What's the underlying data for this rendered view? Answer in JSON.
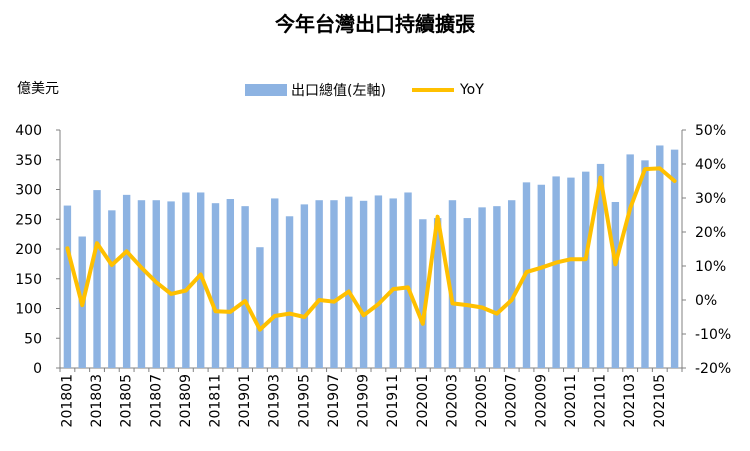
{
  "chart_data": {
    "type": "bar",
    "title": "今年台灣出口持續擴張",
    "ylabel": "億美元",
    "ylim": [
      0,
      400
    ],
    "yticks": [
      0,
      50,
      100,
      150,
      200,
      250,
      300,
      350,
      400
    ],
    "y2lim": [
      -0.2,
      0.5
    ],
    "y2ticks": [
      "-20%",
      "-10%",
      "0%",
      "10%",
      "20%",
      "30%",
      "40%",
      "50%"
    ],
    "legend_position": "top",
    "categories": [
      "201801",
      "201802",
      "201803",
      "201804",
      "201805",
      "201806",
      "201807",
      "201808",
      "201809",
      "201810",
      "201811",
      "201812",
      "201901",
      "201902",
      "201903",
      "201904",
      "201905",
      "201906",
      "201907",
      "201908",
      "201909",
      "201910",
      "201911",
      "201912",
      "202001",
      "202002",
      "202003",
      "202004",
      "202005",
      "202006",
      "202007",
      "202008",
      "202009",
      "202010",
      "202011",
      "202012",
      "202101",
      "202102",
      "202103",
      "202104",
      "202105",
      "202106"
    ],
    "xtick_labels": [
      "201801",
      "201803",
      "201805",
      "201807",
      "201809",
      "201811",
      "201901",
      "201903",
      "201905",
      "201907",
      "201909",
      "201911",
      "202001",
      "202003",
      "202005",
      "202007",
      "202009",
      "202011",
      "202101",
      "202103",
      "202105"
    ],
    "series": [
      {
        "name": "出口總值(左軸)",
        "type": "bar",
        "axis": "left",
        "color": "#8db3e2",
        "values": [
          273,
          221,
          299,
          265,
          291,
          282,
          282,
          280,
          295,
          295,
          277,
          284,
          272,
          203,
          285,
          255,
          275,
          282,
          282,
          288,
          281,
          290,
          285,
          295,
          250,
          252,
          282,
          252,
          270,
          272,
          282,
          312,
          308,
          322,
          320,
          330,
          343,
          279,
          359,
          349,
          374,
          367
        ]
      },
      {
        "name": "YoY",
        "type": "line",
        "axis": "right",
        "color": "#ffc000",
        "values": [
          0.152,
          -0.015,
          0.167,
          0.103,
          0.143,
          0.095,
          0.052,
          0.018,
          0.028,
          0.075,
          -0.033,
          -0.035,
          -0.003,
          -0.087,
          -0.047,
          -0.04,
          -0.05,
          0.0,
          -0.005,
          0.025,
          -0.045,
          -0.012,
          0.032,
          0.037,
          -0.07,
          0.245,
          -0.01,
          -0.015,
          -0.022,
          -0.04,
          0.0,
          0.082,
          0.095,
          0.11,
          0.12,
          0.12,
          0.36,
          0.105,
          0.27,
          0.385,
          0.387,
          0.35
        ]
      }
    ]
  }
}
